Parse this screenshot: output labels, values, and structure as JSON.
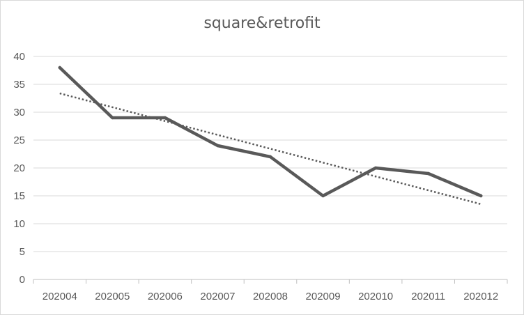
{
  "chart_data": {
    "type": "line",
    "title": "square&retrofit",
    "categories": [
      "202004",
      "202005",
      "202006",
      "202007",
      "202008",
      "202009",
      "202010",
      "202011",
      "202012"
    ],
    "series": [
      {
        "values": [
          38,
          29,
          29,
          24,
          22,
          15,
          20,
          19,
          15
        ],
        "color": "#595959",
        "style": "solid"
      }
    ],
    "trendline": {
      "type": "linear",
      "style": "dotted",
      "color": "#595959"
    },
    "yticks": [
      0,
      5,
      10,
      15,
      20,
      25,
      30,
      35,
      40
    ],
    "ylim": [
      0,
      40
    ],
    "grid": "horizontal",
    "legend": "none",
    "colors": {
      "gridline": "#d9d9d9",
      "axis": "#bfbfbf",
      "text": "#595959"
    }
  }
}
